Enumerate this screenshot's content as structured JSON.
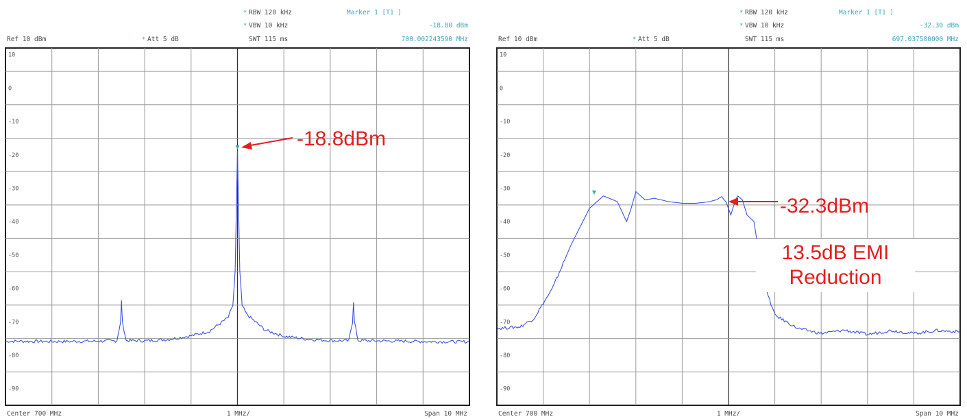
{
  "chart_data": [
    {
      "type": "line",
      "title": "",
      "header": {
        "rbw": "RBW  120 kHz",
        "vbw": "VBW  10 kHz",
        "swt": "SWT  115 ms",
        "ref": "Ref   10 dBm",
        "att": "Att   5 dB",
        "marker_label": "Marker 1 [T1 ]",
        "marker_level": "-18.80 dBm",
        "marker_freq": "700.002243590 MHz",
        "star": "*"
      },
      "footer": {
        "center": "Center  700 MHz",
        "div": "1 MHz/",
        "span": "Span  10 MHz"
      },
      "yticks": [
        "10",
        "0",
        "-10",
        "-20",
        "-30",
        "-40",
        "-50",
        "-60",
        "-70",
        "-80",
        "-90"
      ],
      "ylim": [
        -95,
        12
      ],
      "xlim": [
        695,
        705
      ],
      "grid": true,
      "trace_color": "#3b4fe0",
      "series": [
        {
          "x": [
            695.0,
            696.0,
            697.0,
            697.4,
            697.48,
            697.5,
            697.52,
            697.6,
            698.0,
            698.5,
            699.0,
            699.4,
            699.8,
            699.9,
            699.95,
            700.0,
            700.05,
            700.1,
            700.2,
            700.6,
            701.0,
            701.5,
            702.0,
            702.4,
            702.48,
            702.5,
            702.52,
            702.6,
            703.0,
            704.0,
            705.0
          ],
          "y": [
            -75.8,
            -75.9,
            -75.8,
            -75.7,
            -70,
            -63.8,
            -70,
            -75.6,
            -75.7,
            -75.3,
            -74.2,
            -72.8,
            -68.7,
            -65.2,
            -55,
            -18.8,
            -55,
            -65.2,
            -67.8,
            -72.5,
            -74.3,
            -75.2,
            -75.6,
            -75.7,
            -70,
            -63.8,
            -70,
            -75.6,
            -75.7,
            -75.9,
            -76.0
          ]
        }
      ],
      "annotation": {
        "text": "-18.8dBm",
        "x": 700.0,
        "y": -18.8
      }
    },
    {
      "type": "line",
      "title": "",
      "header": {
        "rbw": "RBW  120 kHz",
        "vbw": "VBW  10 kHz",
        "swt": "SWT  115 ms",
        "ref": "Ref   10 dBm",
        "att": "Att   5 dB",
        "marker_label": "Marker 1 [T1 ]",
        "marker_level": "-32.30 dBm",
        "marker_freq": "697.037500000 MHz",
        "star": "*"
      },
      "footer": {
        "center": "Center  700 MHz",
        "div": "1 MHz/",
        "span": "Span  10 MHz"
      },
      "yticks": [
        "10",
        "0",
        "-10",
        "-20",
        "-30",
        "-40",
        "-50",
        "-60",
        "-70",
        "-80",
        "-90"
      ],
      "ylim": [
        -95,
        12
      ],
      "xlim": [
        695,
        705
      ],
      "grid": true,
      "trace_color": "#3b4fe0",
      "series": [
        {
          "x": [
            695.0,
            695.5,
            695.8,
            696.2,
            696.6,
            697.0,
            697.3,
            697.6,
            697.8,
            697.9,
            698.0,
            698.2,
            698.4,
            698.7,
            699.0,
            699.3,
            699.6,
            699.75,
            699.85,
            699.95,
            700.05,
            700.15,
            700.2,
            700.3,
            700.4,
            700.55,
            700.65,
            700.8,
            701.0,
            701.5,
            702.0,
            702.5,
            703.0,
            703.5,
            704.0,
            704.5,
            705.0
          ],
          "y": [
            -72,
            -71.5,
            -69,
            -60,
            -47,
            -36,
            -32.3,
            -34,
            -40,
            -36,
            -31,
            -33.5,
            -33,
            -34,
            -34.5,
            -34.5,
            -34,
            -33.4,
            -32.5,
            -34.2,
            -38,
            -33.5,
            -32.3,
            -33.5,
            -38,
            -40,
            -49,
            -60,
            -68,
            -72,
            -73.5,
            -72.5,
            -73.8,
            -72.6,
            -73.5,
            -72.6,
            -73.0
          ]
        }
      ],
      "annotation": {
        "text": "-32.3dBm",
        "x": 700.2,
        "y": -32.3
      },
      "annotation2": {
        "line1": "13.5dB EMI",
        "line2": "Reduction"
      }
    }
  ]
}
